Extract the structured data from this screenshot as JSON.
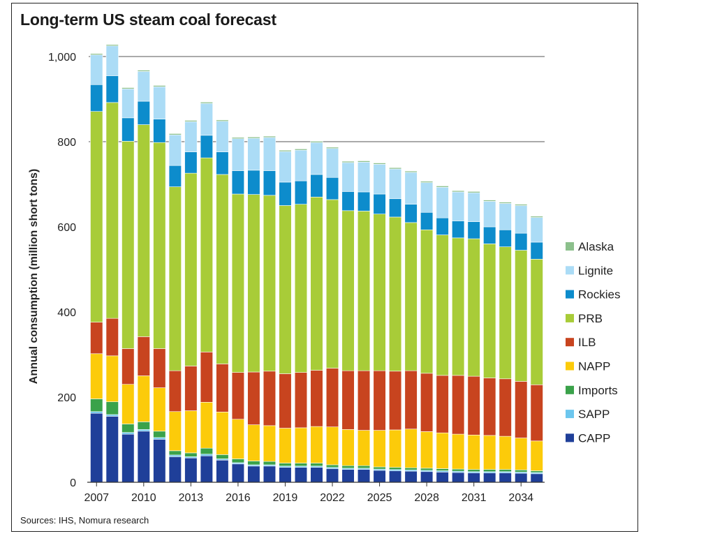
{
  "chart_data": {
    "type": "bar",
    "stacked": true,
    "title": "Long-term US steam coal forecast",
    "source": "Sources: IHS, Nomura research",
    "ylabel": "Annual consumption (million short tons)",
    "xlabel": "",
    "ylim": [
      0,
      1000
    ],
    "yticks": [
      0,
      200,
      400,
      600,
      800,
      1000
    ],
    "ytick_labels": [
      "0",
      "200",
      "400",
      "600",
      "800",
      "1,000"
    ],
    "categories": [
      "2007",
      "2008",
      "2009",
      "2010",
      "2011",
      "2012",
      "2013",
      "2014",
      "2015",
      "2016",
      "2017",
      "2018",
      "2019",
      "2020",
      "2021",
      "2022",
      "2023",
      "2024",
      "2025",
      "2026",
      "2027",
      "2028",
      "2029",
      "2030",
      "2031",
      "2032",
      "2033",
      "2034",
      "2035"
    ],
    "xtick_labels": [
      "2007",
      "2010",
      "2013",
      "2016",
      "2019",
      "2022",
      "2025",
      "2028",
      "2031",
      "2034"
    ],
    "gridlines": [
      800,
      1000
    ],
    "legend_position": "right",
    "series": [
      {
        "name": "CAPP",
        "color": "#1f3f99",
        "values": [
          162,
          155,
          113,
          120,
          101,
          60,
          57,
          62,
          52,
          43,
          38,
          38,
          35,
          35,
          35,
          32,
          30,
          30,
          28,
          27,
          26,
          25,
          24,
          23,
          22,
          22,
          22,
          21,
          20
        ]
      },
      {
        "name": "SAPP",
        "color": "#6cc6ee",
        "values": [
          4,
          4,
          4,
          4,
          4,
          4,
          3,
          4,
          3,
          3,
          3,
          3,
          3,
          3,
          3,
          3,
          3,
          3,
          3,
          3,
          3,
          3,
          3,
          3,
          3,
          3,
          3,
          3,
          3
        ]
      },
      {
        "name": "Imports",
        "color": "#3aa24a",
        "values": [
          30,
          30,
          20,
          18,
          15,
          10,
          9,
          14,
          10,
          9,
          9,
          8,
          7,
          7,
          7,
          6,
          6,
          6,
          5,
          5,
          5,
          5,
          5,
          5,
          5,
          5,
          5,
          5,
          4
        ]
      },
      {
        "name": "NAPP",
        "color": "#fccb0a",
        "values": [
          106,
          108,
          93,
          108,
          102,
          92,
          99,
          108,
          100,
          93,
          85,
          84,
          82,
          83,
          86,
          89,
          85,
          83,
          86,
          88,
          91,
          86,
          84,
          82,
          81,
          80,
          78,
          75,
          70
        ]
      },
      {
        "name": "ILB",
        "color": "#c8441f",
        "values": [
          74,
          88,
          84,
          92,
          92,
          96,
          105,
          118,
          113,
          110,
          124,
          128,
          128,
          130,
          132,
          138,
          138,
          140,
          140,
          138,
          137,
          137,
          135,
          138,
          138,
          135,
          135,
          133,
          132
        ]
      },
      {
        "name": "PRB",
        "color": "#a8cc38",
        "values": [
          495,
          507,
          487,
          498,
          484,
          432,
          453,
          456,
          445,
          419,
          417,
          413,
          395,
          395,
          407,
          396,
          376,
          375,
          368,
          362,
          348,
          337,
          330,
          323,
          323,
          315,
          310,
          308,
          295
        ]
      },
      {
        "name": "Rockies",
        "color": "#0d8ccc",
        "values": [
          63,
          63,
          55,
          55,
          55,
          50,
          50,
          53,
          53,
          55,
          57,
          58,
          55,
          55,
          53,
          52,
          45,
          45,
          47,
          43,
          43,
          41,
          40,
          40,
          40,
          40,
          40,
          40,
          40
        ]
      },
      {
        "name": "Lignite",
        "color": "#abdcf6",
        "values": [
          70,
          70,
          68,
          70,
          76,
          72,
          71,
          75,
          72,
          75,
          75,
          78,
          72,
          72,
          75,
          68,
          68,
          70,
          70,
          70,
          75,
          70,
          72,
          68,
          68,
          60,
          62,
          65,
          58
        ]
      },
      {
        "name": "Alaska",
        "color": "#8cc08c",
        "values": [
          3,
          3,
          3,
          3,
          3,
          3,
          3,
          3,
          3,
          3,
          3,
          3,
          3,
          3,
          3,
          3,
          3,
          3,
          3,
          3,
          3,
          3,
          3,
          3,
          3,
          3,
          3,
          3,
          3
        ]
      }
    ],
    "legend_order": [
      "Alaska",
      "Lignite",
      "Rockies",
      "PRB",
      "ILB",
      "NAPP",
      "Imports",
      "SAPP",
      "CAPP"
    ]
  }
}
